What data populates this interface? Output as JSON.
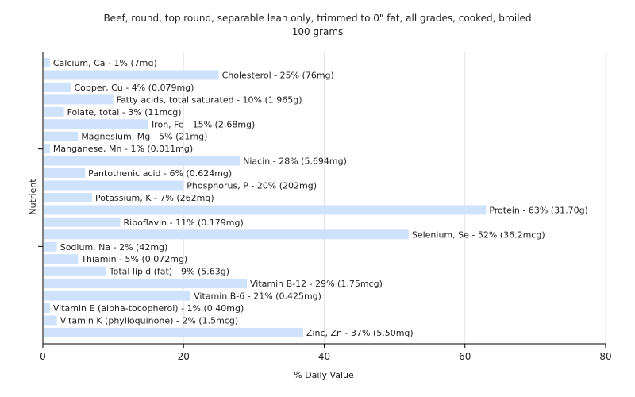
{
  "chart_data": {
    "type": "bar",
    "orientation": "horizontal",
    "title": "Beef, round, top round, separable lean only, trimmed to 0\" fat, all grades, cooked, broiled",
    "subtitle": "100 grams",
    "xlabel": "% Daily Value",
    "ylabel": "Nutrient",
    "xlim": [
      0,
      80
    ],
    "xticks": [
      0,
      20,
      40,
      60,
      80
    ],
    "grid": "vertical",
    "bar_color": "#cfe2fb",
    "categories": [
      "Calcium, Ca",
      "Cholesterol",
      "Copper, Cu",
      "Fatty acids, total saturated",
      "Folate, total",
      "Iron, Fe",
      "Magnesium, Mg",
      "Manganese, Mn",
      "Niacin",
      "Pantothenic acid",
      "Phosphorus, P",
      "Potassium, K",
      "Protein",
      "Riboflavin",
      "Selenium, Se",
      "Sodium, Na",
      "Thiamin",
      "Total lipid (fat)",
      "Vitamin B-12",
      "Vitamin B-6",
      "Vitamin E (alpha-tocopherol)",
      "Vitamin K (phylloquinone)",
      "Zinc, Zn"
    ],
    "values": [
      1,
      25,
      4,
      10,
      3,
      15,
      5,
      1,
      28,
      6,
      20,
      7,
      63,
      11,
      52,
      2,
      5,
      9,
      29,
      21,
      1,
      2,
      37
    ],
    "labels": [
      "Calcium, Ca - 1% (7mg)",
      "Cholesterol - 25% (76mg)",
      "Copper, Cu - 4% (0.079mg)",
      "Fatty acids, total saturated - 10% (1.965g)",
      "Folate, total - 3% (11mcg)",
      "Iron, Fe - 15% (2.68mg)",
      "Magnesium, Mg - 5% (21mg)",
      "Manganese, Mn - 1% (0.011mg)",
      "Niacin - 28% (5.694mg)",
      "Pantothenic acid - 6% (0.624mg)",
      "Phosphorus, P - 20% (202mg)",
      "Potassium, K - 7% (262mg)",
      "Protein - 63% (31.70g)",
      "Riboflavin - 11% (0.179mg)",
      "Selenium, Se - 52% (36.2mcg)",
      "Sodium, Na - 2% (42mg)",
      "Thiamin - 5% (0.072mg)",
      "Total lipid (fat) - 9% (5.63g)",
      "Vitamin B-12 - 29% (1.75mcg)",
      "Vitamin B-6 - 21% (0.425mg)",
      "Vitamin E (alpha-tocopherol) - 1% (0.40mg)",
      "Vitamin K (phylloquinone) - 2% (1.5mcg)",
      "Zinc, Zn - 37% (5.50mg)"
    ]
  }
}
